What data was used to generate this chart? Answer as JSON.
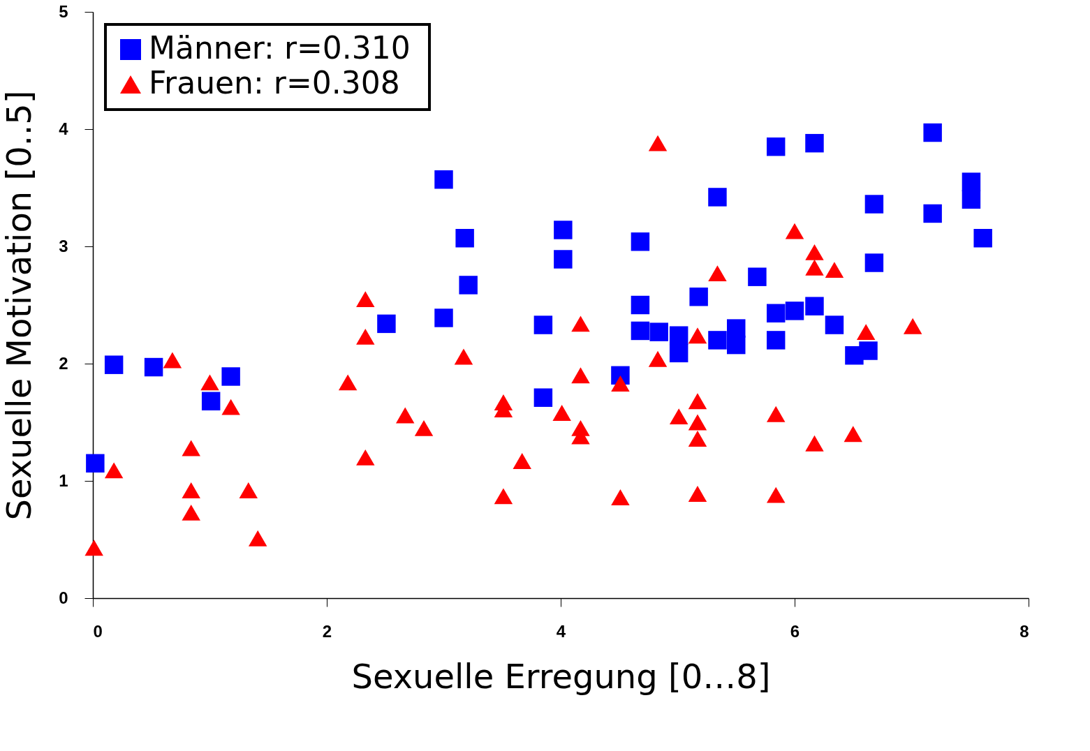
{
  "chart_data": {
    "type": "scatter",
    "xlabel": "Sexuelle Erregung [0…8]",
    "ylabel": "Sexuelle Motivation [0..5]",
    "xlim": [
      0,
      8
    ],
    "xticks": [
      0,
      2,
      4,
      6,
      8
    ],
    "ylim": [
      0,
      5
    ],
    "yticks": [
      0,
      1,
      2,
      3,
      4,
      5
    ],
    "grid": false,
    "legend": "top left",
    "series": [
      {
        "name": "Männer: r=0.310",
        "color": "#0000ff",
        "marker": "square",
        "x": [
          0.02,
          0.18,
          0.52,
          1.01,
          1.18,
          2.51,
          3.0,
          3.0,
          3.18,
          3.21,
          3.85,
          3.85,
          4.02,
          4.02,
          4.51,
          4.68,
          4.68,
          4.68,
          4.84,
          5.01,
          5.01,
          5.18,
          5.34,
          5.34,
          5.5,
          5.5,
          5.68,
          5.84,
          5.84,
          5.84,
          6.0,
          6.17,
          6.17,
          6.34,
          6.51,
          6.63,
          6.68,
          6.68,
          7.18,
          7.18,
          7.51,
          7.51,
          7.61
        ],
        "values": [
          1.15,
          1.99,
          1.97,
          1.68,
          1.89,
          2.34,
          3.57,
          2.39,
          3.07,
          2.67,
          2.33,
          1.71,
          3.14,
          2.89,
          1.9,
          3.04,
          2.5,
          2.28,
          2.27,
          2.24,
          2.09,
          2.57,
          3.42,
          2.2,
          2.3,
          2.16,
          2.74,
          3.85,
          2.43,
          2.2,
          2.45,
          3.88,
          2.49,
          2.33,
          2.07,
          2.11,
          3.36,
          2.86,
          3.97,
          3.28,
          3.55,
          3.4,
          3.07
        ]
      },
      {
        "name": "Frauen:   r=0.308",
        "color": "#ff0000",
        "marker": "triangle",
        "x": [
          0.01,
          0.18,
          0.68,
          0.84,
          0.84,
          0.84,
          1.0,
          1.18,
          1.33,
          1.41,
          2.18,
          2.33,
          2.33,
          2.33,
          2.67,
          2.83,
          3.17,
          3.51,
          3.51,
          3.51,
          3.67,
          4.01,
          4.17,
          4.17,
          4.17,
          4.17,
          4.51,
          4.51,
          4.83,
          4.83,
          5.01,
          5.17,
          5.17,
          5.17,
          5.17,
          5.17,
          5.34,
          5.84,
          5.84,
          6.0,
          6.17,
          6.17,
          6.17,
          6.34,
          6.5,
          6.61,
          7.01
        ],
        "values": [
          0.43,
          1.09,
          2.03,
          1.28,
          0.92,
          0.73,
          1.84,
          1.63,
          0.92,
          0.51,
          1.84,
          2.55,
          2.23,
          1.2,
          1.56,
          1.45,
          2.06,
          1.67,
          1.61,
          0.87,
          1.17,
          1.58,
          2.34,
          1.9,
          1.45,
          1.38,
          1.83,
          0.86,
          3.88,
          2.04,
          1.55,
          2.24,
          1.68,
          1.5,
          1.36,
          0.89,
          2.77,
          1.57,
          0.88,
          3.13,
          2.95,
          2.82,
          1.32,
          2.8,
          1.4,
          2.27,
          2.32
        ]
      }
    ]
  }
}
